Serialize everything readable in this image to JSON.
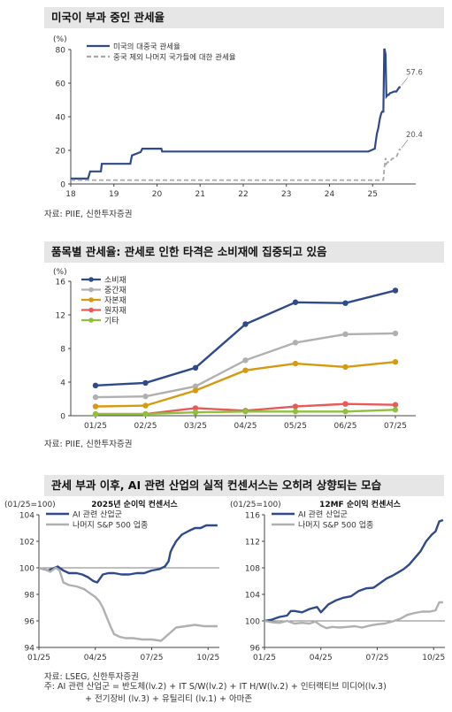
{
  "sections": [
    {
      "title": "미국이 부과 중인 관세율",
      "source": "자료: PIIE, 신한투자증권"
    },
    {
      "title": "품목별 관세율: 관세로 인한 타격은 소비재에 집중되고 있음",
      "source": "자료: PIIE, 신한투자증권"
    },
    {
      "title": "관세 부과 이후, AI 관련 산업의 실적 컨센서스는 오히려 상향되는 모습",
      "source": "자료: LSEG, 신한투자증권",
      "note_line1": "주: AI 관련 산업군 = 반도체(lv.2) + IT S/W(lv.2) + IT H/W(lv.2) + 인터랙티브 미디어(lv.3)",
      "note_line2": "+ 전기장비 (lv.3) + 유틸리티 (lv.1) + 아마존"
    }
  ],
  "chart_data": [
    {
      "type": "line",
      "unit_label": "(%)",
      "ylim": [
        0,
        80
      ],
      "yticks": [
        0,
        20,
        40,
        60,
        80
      ],
      "xlim": [
        2018,
        2026
      ],
      "xticks": [
        18,
        19,
        20,
        21,
        22,
        23,
        24,
        25
      ],
      "xtick_years": [
        2018,
        2019,
        2020,
        2021,
        2022,
        2023,
        2024,
        2025
      ],
      "legend_position": "top-left",
      "series": [
        {
          "name": "미국의 대중국 관세율",
          "color": "#2e4a8a",
          "dash": false,
          "end_label": "57.6",
          "x": [
            2018.0,
            2018.4,
            2018.45,
            2018.7,
            2018.72,
            2019.38,
            2019.42,
            2019.62,
            2019.66,
            2020.1,
            2020.12,
            2024.9,
            2025.05,
            2025.1,
            2025.13,
            2025.17,
            2025.2,
            2025.22,
            2025.25,
            2025.27,
            2025.28,
            2025.3,
            2025.32,
            2025.35,
            2025.37,
            2025.4,
            2025.45,
            2025.5,
            2025.55,
            2025.62,
            2025.65
          ],
          "y": [
            3.2,
            3.2,
            7.5,
            7.5,
            12.0,
            12.0,
            17.0,
            19.0,
            21.0,
            21.0,
            19.3,
            19.3,
            21.0,
            30.0,
            33.0,
            39.0,
            42.0,
            43.0,
            43.0,
            80.0,
            80.0,
            77.0,
            52.0,
            53.0,
            53.0,
            54.0,
            54.5,
            55.0,
            55.0,
            57.6,
            57.6
          ]
        },
        {
          "name": "중국 제외 나머지 국가들에 대한 관세율",
          "color": "#a8a8a8",
          "dash": true,
          "end_label": "20.4",
          "x": [
            2018.0,
            2025.25,
            2025.27,
            2025.3,
            2025.32,
            2025.35,
            2025.4,
            2025.45,
            2025.5,
            2025.55,
            2025.62,
            2025.65
          ],
          "y": [
            2.3,
            2.3,
            9.0,
            15.5,
            12.0,
            13.0,
            13.0,
            15.0,
            15.5,
            16.0,
            20.4,
            20.4
          ]
        }
      ]
    },
    {
      "type": "line",
      "unit_label": "(%)",
      "ylim": [
        0,
        16
      ],
      "yticks": [
        0,
        4,
        8,
        12,
        16
      ],
      "categories": [
        "01/25",
        "02/25",
        "03/25",
        "04/25",
        "05/25",
        "06/25",
        "07/25"
      ],
      "legend_position": "top-left",
      "series": [
        {
          "name": "소비재",
          "color": "#2e4a8a",
          "values": [
            3.6,
            3.9,
            5.7,
            10.9,
            13.5,
            13.4,
            14.9
          ]
        },
        {
          "name": "중간재",
          "color": "#b0b0b0",
          "values": [
            2.2,
            2.3,
            3.5,
            6.6,
            8.7,
            9.7,
            9.8
          ]
        },
        {
          "name": "자본재",
          "color": "#d69a10",
          "values": [
            1.1,
            1.2,
            3.0,
            5.4,
            6.2,
            5.8,
            6.4
          ]
        },
        {
          "name": "원자재",
          "color": "#e85a5a",
          "values": [
            0.2,
            0.2,
            0.9,
            0.6,
            1.1,
            1.4,
            1.3
          ]
        },
        {
          "name": "기타",
          "color": "#8ec03c",
          "values": [
            0.2,
            0.2,
            0.4,
            0.5,
            0.5,
            0.5,
            0.7
          ]
        }
      ]
    },
    {
      "type": "line",
      "title": "2025년 순이익 컨센서스",
      "unit_label": "(01/25=100)",
      "ylim": [
        94,
        104
      ],
      "yticks": [
        94,
        96,
        98,
        100,
        102,
        104
      ],
      "xlim": [
        0,
        9.6
      ],
      "xticks": [
        "01/25",
        "04/25",
        "07/25",
        "10/25"
      ],
      "xtick_positions": [
        0,
        3,
        6,
        9
      ],
      "legend_position": "top-left",
      "series": [
        {
          "name": "AI 관련 산업군",
          "color": "#2e4a8a",
          "x": [
            0,
            0.5,
            1.0,
            1.3,
            1.6,
            2.0,
            2.3,
            2.6,
            2.9,
            3.1,
            3.4,
            3.7,
            4.0,
            4.4,
            4.8,
            5.2,
            5.6,
            6.0,
            6.4,
            6.7,
            6.9,
            7.0,
            7.1,
            7.3,
            7.6,
            8.0,
            8.3,
            8.6,
            8.9,
            9.2,
            9.5
          ],
          "y": [
            100,
            99.8,
            100.1,
            99.8,
            99.6,
            99.6,
            99.5,
            99.3,
            99.0,
            98.9,
            99.5,
            99.6,
            99.6,
            99.5,
            99.5,
            99.6,
            99.6,
            99.8,
            99.9,
            100.1,
            100.5,
            101.2,
            101.5,
            102.0,
            102.5,
            102.8,
            103.0,
            103.0,
            103.2,
            103.2,
            103.2
          ]
        },
        {
          "name": "나머지 S&P 500 업종",
          "color": "#b0b0b0",
          "x": [
            0,
            0.3,
            0.6,
            0.9,
            1.1,
            1.3,
            1.6,
            2.0,
            2.4,
            2.8,
            3.0,
            3.2,
            3.4,
            3.6,
            3.8,
            4.0,
            4.3,
            4.6,
            5.0,
            5.5,
            6.0,
            6.5,
            6.9,
            7.3,
            7.8,
            8.3,
            8.8,
            9.2,
            9.5
          ],
          "y": [
            100,
            99.9,
            99.7,
            100.0,
            99.8,
            98.9,
            98.7,
            98.6,
            98.4,
            98.0,
            97.8,
            97.5,
            97.0,
            96.3,
            95.6,
            95.0,
            94.8,
            94.7,
            94.7,
            94.6,
            94.6,
            94.5,
            95.0,
            95.5,
            95.6,
            95.7,
            95.6,
            95.6,
            95.6
          ]
        }
      ]
    },
    {
      "type": "line",
      "title": "12MF 순이익 컨센서스",
      "unit_label": "(01/25=100)",
      "ylim": [
        96,
        116
      ],
      "yticks": [
        96,
        100,
        104,
        108,
        112,
        116
      ],
      "xlim": [
        0,
        9.6
      ],
      "xticks": [
        "01/25",
        "04/25",
        "07/25",
        "10/25"
      ],
      "xtick_positions": [
        0,
        3,
        6,
        9
      ],
      "legend_position": "top-left",
      "series": [
        {
          "name": "AI 관련 산업군",
          "color": "#2e4a8a",
          "x": [
            0,
            0.4,
            0.8,
            1.2,
            1.4,
            1.6,
            2.0,
            2.4,
            2.8,
            3.0,
            3.4,
            3.8,
            4.2,
            4.6,
            5.0,
            5.4,
            5.8,
            6.2,
            6.5,
            6.8,
            7.1,
            7.4,
            7.7,
            8.0,
            8.3,
            8.6,
            8.9,
            9.1,
            9.3,
            9.5
          ],
          "y": [
            100,
            100.2,
            100.6,
            100.8,
            101.5,
            101.5,
            101.3,
            101.8,
            102.1,
            101.3,
            102.5,
            103.1,
            103.5,
            103.7,
            104.5,
            104.9,
            105.0,
            105.8,
            106.4,
            106.8,
            107.3,
            107.8,
            108.5,
            109.5,
            110.5,
            112.0,
            113.0,
            113.5,
            115.0,
            115.2
          ]
        },
        {
          "name": "나머지 S&P 500 업종",
          "color": "#b0b0b0",
          "x": [
            0,
            0.4,
            0.8,
            1.2,
            1.6,
            2.0,
            2.4,
            2.7,
            3.0,
            3.3,
            3.6,
            4.0,
            4.4,
            4.8,
            5.2,
            5.6,
            6.0,
            6.4,
            6.8,
            7.2,
            7.6,
            8.0,
            8.4,
            8.8,
            9.1,
            9.3,
            9.5
          ],
          "y": [
            100,
            99.8,
            99.7,
            100.0,
            99.6,
            99.7,
            99.6,
            99.9,
            99.3,
            98.9,
            99.1,
            99.0,
            99.1,
            99.2,
            99.0,
            99.3,
            99.5,
            99.6,
            99.9,
            100.3,
            100.9,
            101.2,
            101.4,
            101.4,
            101.6,
            102.8,
            102.8
          ]
        }
      ]
    }
  ]
}
